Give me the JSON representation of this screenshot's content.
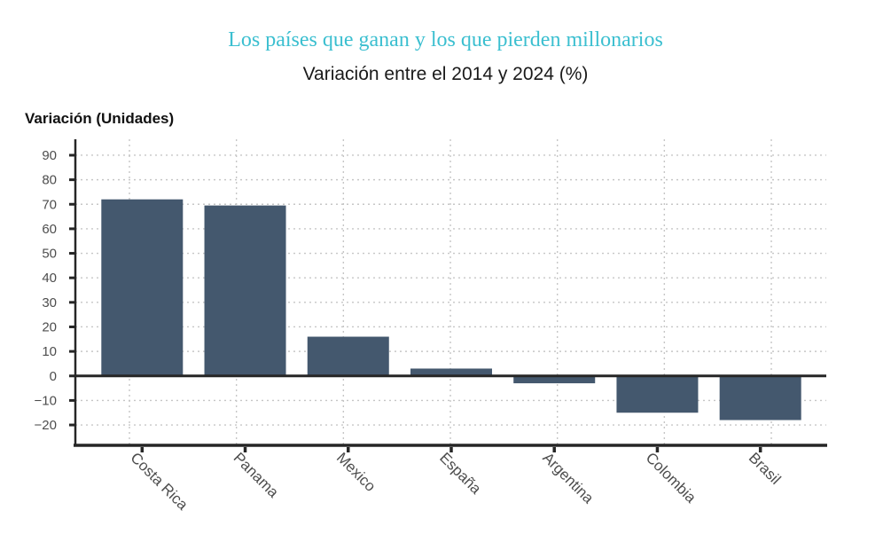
{
  "chart_data": {
    "type": "bar",
    "title": "Los países que ganan y los que pierden millonarios",
    "subtitle": "Variación entre el 2014 y 2024 (%)",
    "ylabel": "Variación (Unidades)",
    "xlabel": "",
    "categories": [
      "Costa Rica",
      "Panama",
      "Mexico",
      "España",
      "Argentina",
      "Colombia",
      "Brasil"
    ],
    "values": [
      72,
      69.5,
      16,
      3,
      -3,
      -15,
      -18
    ],
    "yticks": [
      90,
      80,
      70,
      60,
      50,
      40,
      30,
      20,
      10,
      0,
      -10,
      -20
    ],
    "ylim": [
      -28.3,
      96.5
    ],
    "grid": "dashed, horizontal and vertical",
    "legend": "none",
    "zero_baseline": true,
    "colors": {
      "bar": "#44586e",
      "axis": "#262626",
      "grid": "#c6c6c6",
      "tick_label": "#4d4d4d",
      "title": "#3bbfd0",
      "subtitle": "#1a1a1a",
      "ylabel": "#111111",
      "background": "#ffffff"
    }
  }
}
